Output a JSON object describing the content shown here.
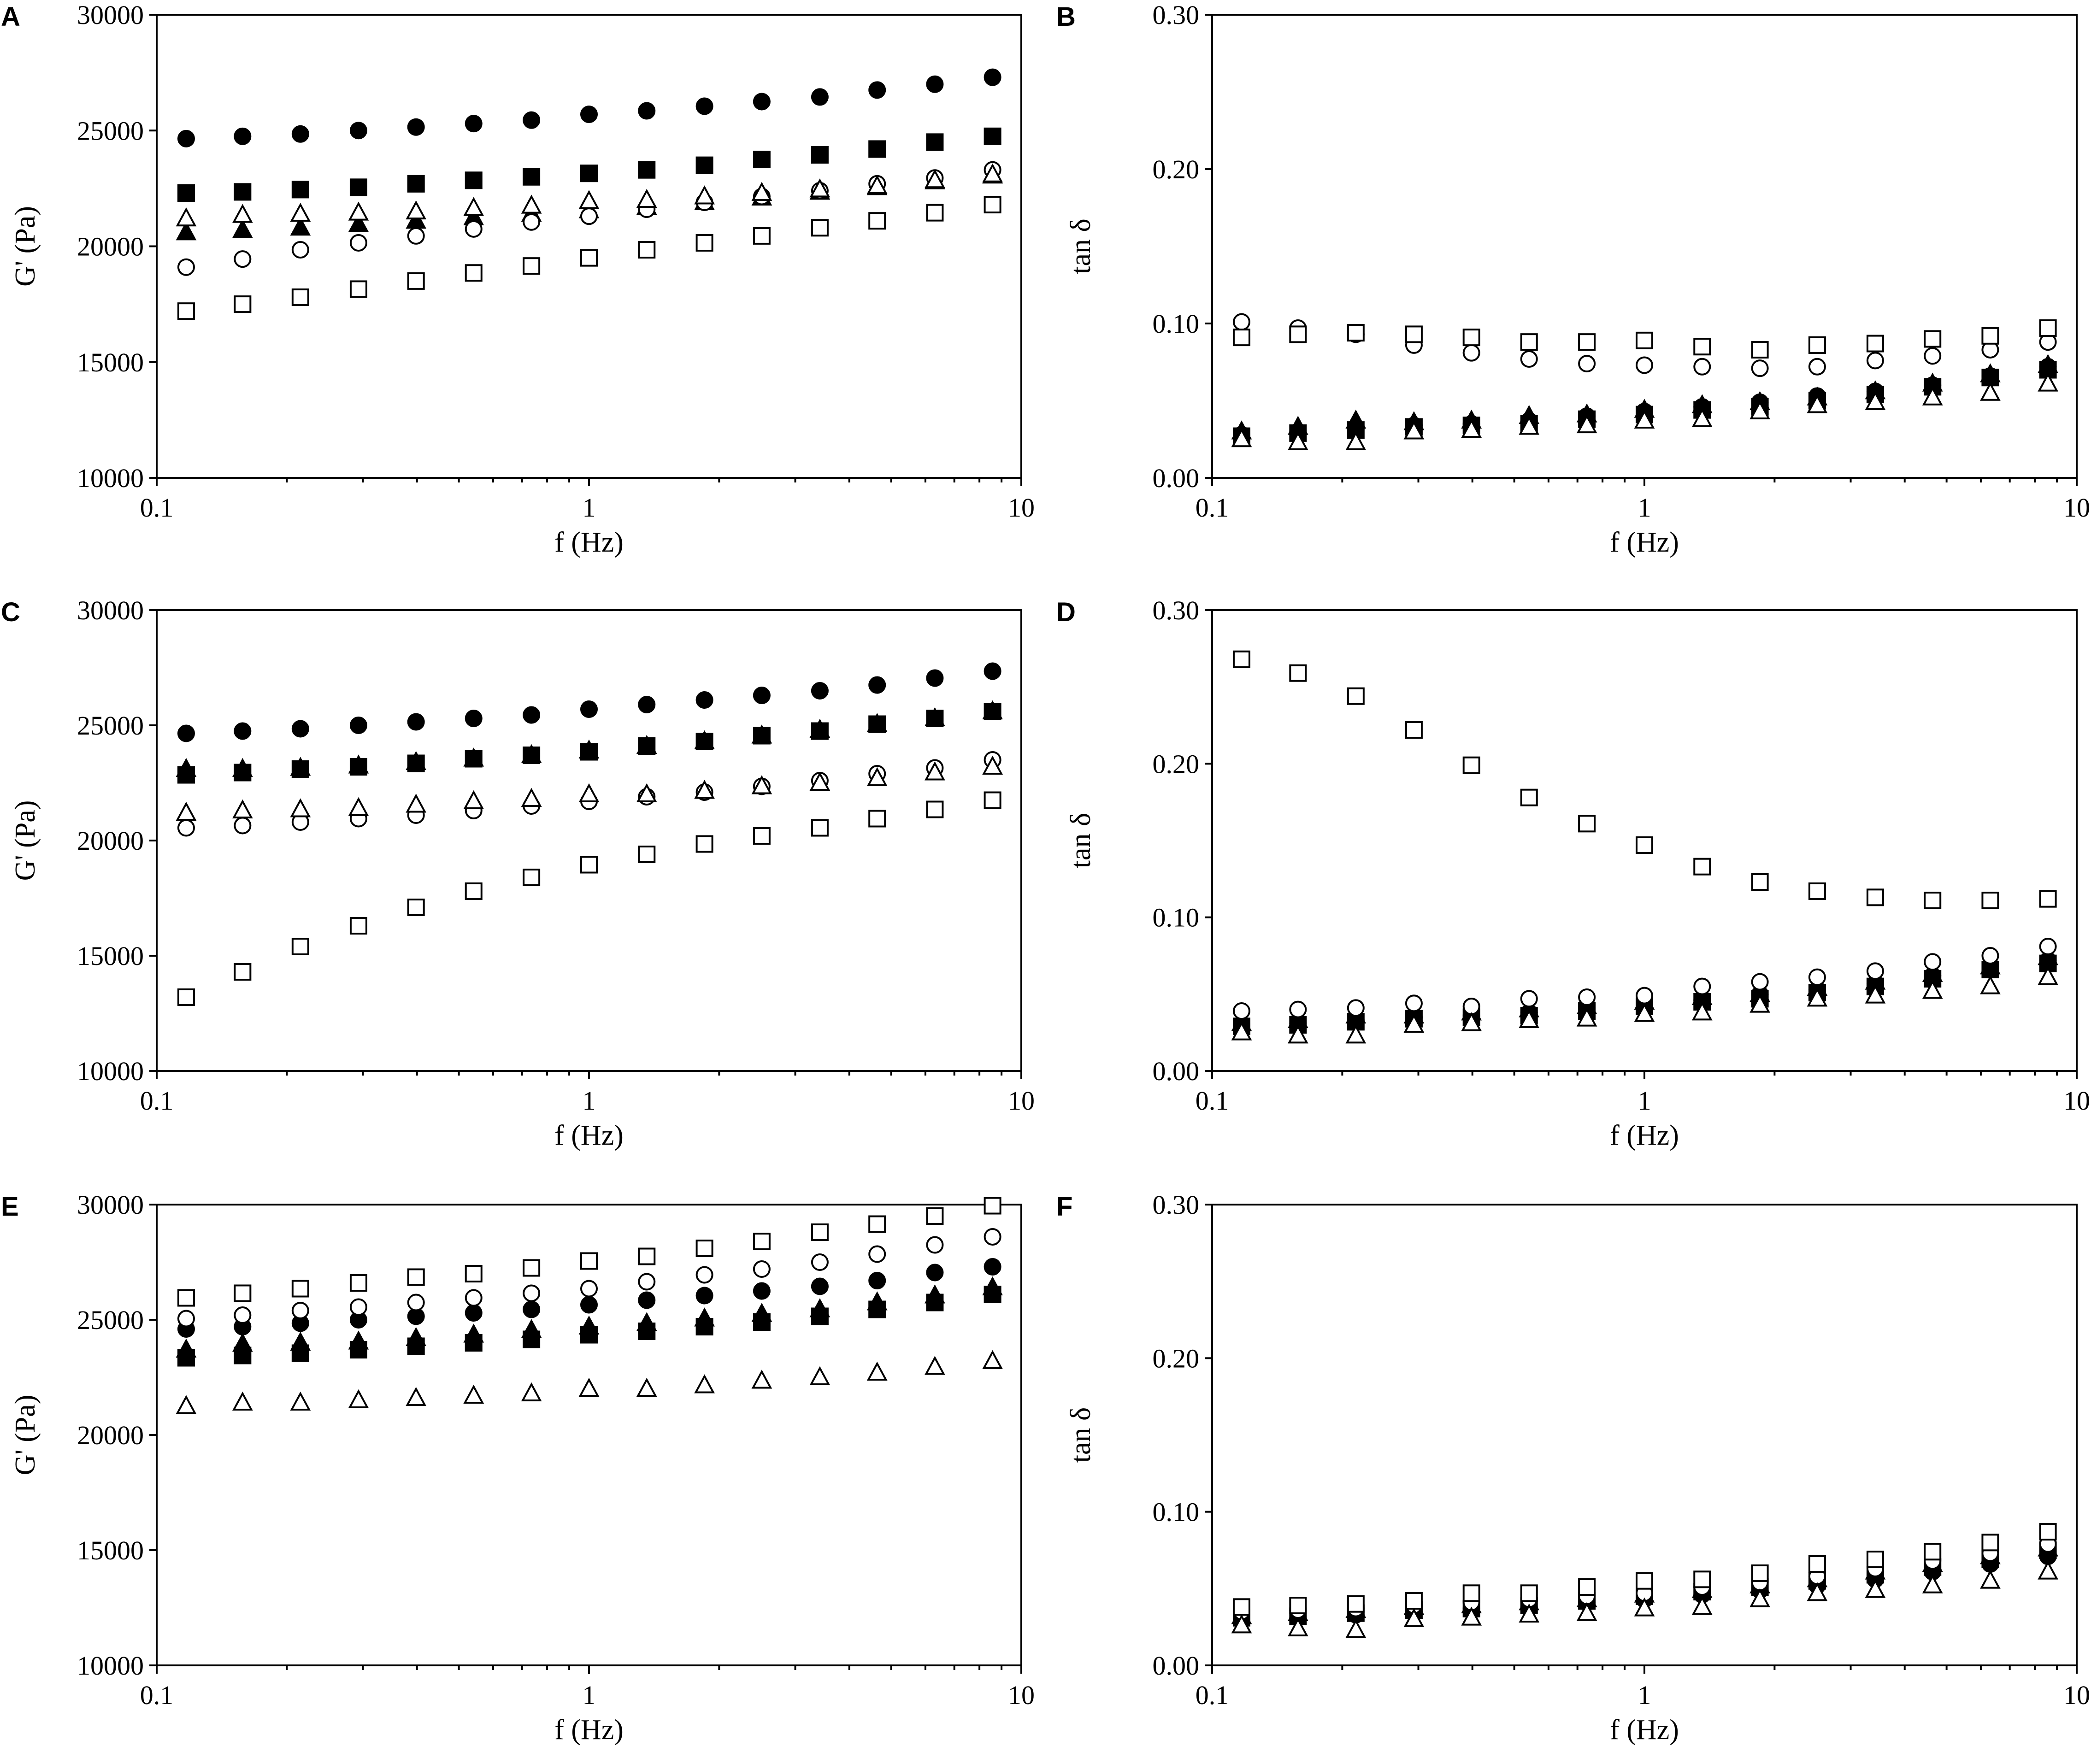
{
  "figure": {
    "series_styles": [
      {
        "key": "filled-circle",
        "marker": "circle",
        "filled": true
      },
      {
        "key": "filled-square",
        "marker": "square",
        "filled": true
      },
      {
        "key": "filled-triangle",
        "marker": "triangle",
        "filled": true
      },
      {
        "key": "open-circle",
        "marker": "circle",
        "filled": false
      },
      {
        "key": "open-triangle",
        "marker": "triangle",
        "filled": false
      },
      {
        "key": "open-square",
        "marker": "square",
        "filled": false
      }
    ],
    "colors": {
      "marker": "#000000",
      "background": "#ffffff"
    }
  },
  "chart_data": [
    {
      "panel": "A",
      "type": "scatter",
      "xscale": "log",
      "xlabel": "f (Hz)",
      "ylabel": "G' (Pa)",
      "xlim": [
        0.1,
        10
      ],
      "ylim": [
        10000,
        30000
      ],
      "xticks": [
        "0.1",
        "1",
        "10"
      ],
      "yticks": [
        "10000",
        "15000",
        "20000",
        "25000",
        "30000"
      ],
      "x": [
        0.117,
        0.158,
        0.215,
        0.293,
        0.398,
        0.541,
        0.736,
        1.0,
        1.36,
        1.85,
        2.51,
        3.42,
        4.64,
        6.31,
        8.58
      ],
      "series": [
        {
          "style": "filled-circle",
          "values": [
            24650,
            24750,
            24850,
            25000,
            25150,
            25300,
            25450,
            25700,
            25850,
            26050,
            26250,
            26450,
            26750,
            27000,
            27300
          ]
        },
        {
          "style": "filled-square",
          "values": [
            22300,
            22350,
            22450,
            22550,
            22700,
            22850,
            23000,
            23150,
            23300,
            23500,
            23750,
            23950,
            24200,
            24500,
            24750
          ]
        },
        {
          "style": "filled-triangle",
          "values": [
            20600,
            20700,
            20800,
            20950,
            21100,
            21250,
            21400,
            21550,
            21700,
            21900,
            22100,
            22350,
            22550,
            22800,
            23050
          ]
        },
        {
          "style": "open-circle",
          "values": [
            19100,
            19450,
            19850,
            20150,
            20450,
            20750,
            21050,
            21300,
            21600,
            21900,
            22150,
            22400,
            22700,
            22950,
            23300
          ]
        },
        {
          "style": "open-triangle",
          "values": [
            21200,
            21350,
            21400,
            21450,
            21500,
            21650,
            21750,
            21950,
            22000,
            22150,
            22300,
            22450,
            22600,
            22850,
            23100
          ]
        },
        {
          "style": "open-square",
          "values": [
            17200,
            17500,
            17800,
            18150,
            18500,
            18850,
            19150,
            19500,
            19850,
            20150,
            20450,
            20800,
            21100,
            21450,
            21800
          ]
        }
      ]
    },
    {
      "panel": "B",
      "type": "scatter",
      "xscale": "log",
      "xlabel": "f (Hz)",
      "ylabel": "tan δ",
      "xlim": [
        0.1,
        10
      ],
      "ylim": [
        0,
        0.3
      ],
      "xticks": [
        "0.1",
        "1",
        "10"
      ],
      "yticks": [
        "0.00",
        "0.10",
        "0.20",
        "0.30"
      ],
      "x": [
        0.117,
        0.158,
        0.215,
        0.293,
        0.398,
        0.541,
        0.736,
        1.0,
        1.36,
        1.85,
        2.51,
        3.42,
        4.64,
        6.31,
        8.58
      ],
      "series": [
        {
          "style": "filled-circle",
          "values": [
            0.028,
            0.03,
            0.032,
            0.034,
            0.035,
            0.037,
            0.04,
            0.043,
            0.046,
            0.049,
            0.053,
            0.056,
            0.06,
            0.066,
            0.072
          ]
        },
        {
          "style": "filled-square",
          "values": [
            0.027,
            0.029,
            0.031,
            0.033,
            0.034,
            0.035,
            0.038,
            0.041,
            0.044,
            0.046,
            0.05,
            0.054,
            0.059,
            0.065,
            0.07
          ]
        },
        {
          "style": "filled-triangle",
          "values": [
            0.03,
            0.033,
            0.037,
            0.036,
            0.037,
            0.04,
            0.041,
            0.044,
            0.047,
            0.049,
            0.052,
            0.056,
            0.061,
            0.067,
            0.073
          ]
        },
        {
          "style": "open-circle",
          "values": [
            0.101,
            0.097,
            0.093,
            0.086,
            0.081,
            0.077,
            0.074,
            0.073,
            0.072,
            0.071,
            0.072,
            0.076,
            0.079,
            0.083,
            0.088
          ]
        },
        {
          "style": "open-triangle",
          "values": [
            0.025,
            0.023,
            0.023,
            0.03,
            0.031,
            0.033,
            0.034,
            0.037,
            0.038,
            0.043,
            0.047,
            0.049,
            0.052,
            0.055,
            0.061
          ]
        },
        {
          "style": "open-square",
          "values": [
            0.091,
            0.093,
            0.094,
            0.093,
            0.091,
            0.088,
            0.088,
            0.089,
            0.085,
            0.083,
            0.086,
            0.087,
            0.09,
            0.092,
            0.097
          ]
        }
      ]
    },
    {
      "panel": "C",
      "type": "scatter",
      "xscale": "log",
      "xlabel": "f (Hz)",
      "ylabel": "G' (Pa)",
      "xlim": [
        0.1,
        10
      ],
      "ylim": [
        10000,
        30000
      ],
      "xticks": [
        "0.1",
        "1",
        "10"
      ],
      "yticks": [
        "10000",
        "15000",
        "20000",
        "25000",
        "30000"
      ],
      "x": [
        0.117,
        0.158,
        0.215,
        0.293,
        0.398,
        0.541,
        0.736,
        1.0,
        1.36,
        1.85,
        2.51,
        3.42,
        4.64,
        6.31,
        8.58
      ],
      "series": [
        {
          "style": "filled-circle",
          "values": [
            24650,
            24750,
            24850,
            25000,
            25150,
            25300,
            25450,
            25700,
            25900,
            26100,
            26300,
            26500,
            26750,
            27050,
            27350
          ]
        },
        {
          "style": "filled-square",
          "values": [
            22850,
            22950,
            23100,
            23200,
            23350,
            23550,
            23700,
            23850,
            24100,
            24300,
            24550,
            24750,
            25050,
            25300,
            25600
          ]
        },
        {
          "style": "filled-triangle",
          "values": [
            23100,
            23100,
            23150,
            23250,
            23400,
            23550,
            23700,
            23900,
            24100,
            24300,
            24550,
            24800,
            25050,
            25300,
            25600
          ]
        },
        {
          "style": "open-circle",
          "values": [
            20550,
            20650,
            20800,
            20950,
            21100,
            21300,
            21500,
            21700,
            21900,
            22100,
            22350,
            22600,
            22900,
            23150,
            23500
          ]
        },
        {
          "style": "open-triangle",
          "values": [
            21200,
            21300,
            21350,
            21400,
            21550,
            21700,
            21800,
            22000,
            22000,
            22150,
            22350,
            22500,
            22700,
            22950,
            23200
          ]
        },
        {
          "style": "open-square",
          "values": [
            13200,
            14300,
            15400,
            16300,
            17100,
            17800,
            18400,
            18950,
            19400,
            19850,
            20200,
            20550,
            20950,
            21350,
            21750
          ]
        }
      ]
    },
    {
      "panel": "D",
      "type": "scatter",
      "xscale": "log",
      "xlabel": "f (Hz)",
      "ylabel": "tan δ",
      "xlim": [
        0.1,
        10
      ],
      "ylim": [
        0,
        0.3
      ],
      "xticks": [
        "0.1",
        "1",
        "10"
      ],
      "yticks": [
        "0.00",
        "0.10",
        "0.20",
        "0.30"
      ],
      "x": [
        0.117,
        0.158,
        0.215,
        0.293,
        0.398,
        0.541,
        0.736,
        1.0,
        1.36,
        1.85,
        2.51,
        3.42,
        4.64,
        6.31,
        8.58
      ],
      "series": [
        {
          "style": "filled-circle",
          "values": [
            0.03,
            0.031,
            0.033,
            0.035,
            0.036,
            0.038,
            0.041,
            0.043,
            0.046,
            0.05,
            0.053,
            0.057,
            0.062,
            0.067,
            0.072
          ]
        },
        {
          "style": "filled-square",
          "values": [
            0.029,
            0.03,
            0.032,
            0.034,
            0.035,
            0.036,
            0.039,
            0.042,
            0.045,
            0.047,
            0.051,
            0.055,
            0.06,
            0.066,
            0.07
          ]
        },
        {
          "style": "filled-triangle",
          "values": [
            0.031,
            0.033,
            0.036,
            0.036,
            0.038,
            0.04,
            0.042,
            0.045,
            0.048,
            0.05,
            0.054,
            0.058,
            0.063,
            0.068,
            0.074
          ]
        },
        {
          "style": "open-circle",
          "values": [
            0.039,
            0.04,
            0.041,
            0.044,
            0.042,
            0.047,
            0.048,
            0.049,
            0.055,
            0.058,
            0.061,
            0.065,
            0.071,
            0.075,
            0.081
          ]
        },
        {
          "style": "open-triangle",
          "values": [
            0.025,
            0.023,
            0.023,
            0.03,
            0.031,
            0.033,
            0.034,
            0.037,
            0.038,
            0.043,
            0.047,
            0.049,
            0.052,
            0.055,
            0.061
          ]
        },
        {
          "style": "open-square",
          "values": [
            0.268,
            0.259,
            0.244,
            0.222,
            0.199,
            0.178,
            0.161,
            0.147,
            0.133,
            0.123,
            0.117,
            0.113,
            0.111,
            0.111,
            0.112
          ]
        }
      ]
    },
    {
      "panel": "E",
      "type": "scatter",
      "xscale": "log",
      "xlabel": "f (Hz)",
      "ylabel": "G' (Pa)",
      "xlim": [
        0.1,
        10
      ],
      "ylim": [
        10000,
        30000
      ],
      "xticks": [
        "0.1",
        "1",
        "10"
      ],
      "yticks": [
        "10000",
        "15000",
        "20000",
        "25000",
        "30000"
      ],
      "x": [
        0.117,
        0.158,
        0.215,
        0.293,
        0.398,
        0.541,
        0.736,
        1.0,
        1.36,
        1.85,
        2.51,
        3.42,
        4.64,
        6.31,
        8.58
      ],
      "series": [
        {
          "style": "filled-circle",
          "values": [
            24600,
            24700,
            24850,
            25000,
            25150,
            25300,
            25450,
            25650,
            25850,
            26050,
            26250,
            26450,
            26700,
            27050,
            27300
          ]
        },
        {
          "style": "filled-square",
          "values": [
            23350,
            23450,
            23550,
            23700,
            23850,
            24000,
            24150,
            24350,
            24500,
            24700,
            24900,
            25150,
            25450,
            25750,
            26100
          ]
        },
        {
          "style": "filled-triangle",
          "values": [
            23700,
            23950,
            24000,
            24050,
            24200,
            24350,
            24550,
            24700,
            24850,
            25050,
            25250,
            25450,
            25750,
            26050,
            26400
          ]
        },
        {
          "style": "open-circle",
          "values": [
            25050,
            25200,
            25400,
            25550,
            25750,
            25950,
            26150,
            26350,
            26650,
            26950,
            27200,
            27500,
            27850,
            28250,
            28600
          ]
        },
        {
          "style": "open-triangle",
          "values": [
            21250,
            21400,
            21400,
            21500,
            21600,
            21700,
            21800,
            22000,
            22000,
            22150,
            22350,
            22500,
            22700,
            22950,
            23200
          ]
        },
        {
          "style": "open-square",
          "values": [
            25950,
            26150,
            26350,
            26600,
            26850,
            27000,
            27250,
            27550,
            27750,
            28100,
            28400,
            28800,
            29150,
            29500,
            29950
          ]
        }
      ]
    },
    {
      "panel": "F",
      "type": "scatter",
      "xscale": "log",
      "xlabel": "f (Hz)",
      "ylabel": "tan δ",
      "xlim": [
        0.1,
        10
      ],
      "ylim": [
        0,
        0.3
      ],
      "xticks": [
        "0.1",
        "1",
        "10"
      ],
      "yticks": [
        "0.00",
        "0.10",
        "0.20",
        "0.30"
      ],
      "x": [
        0.117,
        0.158,
        0.215,
        0.293,
        0.398,
        0.541,
        0.736,
        1.0,
        1.36,
        1.85,
        2.51,
        3.42,
        4.64,
        6.31,
        8.58
      ],
      "series": [
        {
          "style": "filled-circle",
          "values": [
            0.03,
            0.031,
            0.033,
            0.035,
            0.037,
            0.038,
            0.041,
            0.043,
            0.046,
            0.049,
            0.052,
            0.056,
            0.061,
            0.066,
            0.071
          ]
        },
        {
          "style": "filled-square",
          "values": [
            0.031,
            0.032,
            0.034,
            0.036,
            0.037,
            0.039,
            0.042,
            0.045,
            0.048,
            0.051,
            0.055,
            0.059,
            0.064,
            0.069,
            0.075
          ]
        },
        {
          "style": "filled-triangle",
          "values": [
            0.032,
            0.034,
            0.036,
            0.038,
            0.039,
            0.041,
            0.043,
            0.046,
            0.049,
            0.052,
            0.056,
            0.061,
            0.066,
            0.071,
            0.076
          ]
        },
        {
          "style": "open-circle",
          "values": [
            0.035,
            0.036,
            0.037,
            0.039,
            0.041,
            0.043,
            0.045,
            0.047,
            0.051,
            0.054,
            0.058,
            0.063,
            0.068,
            0.073,
            0.079
          ]
        },
        {
          "style": "open-triangle",
          "values": [
            0.026,
            0.024,
            0.023,
            0.03,
            0.031,
            0.033,
            0.034,
            0.037,
            0.038,
            0.043,
            0.047,
            0.049,
            0.052,
            0.055,
            0.061
          ]
        },
        {
          "style": "open-square",
          "values": [
            0.038,
            0.039,
            0.04,
            0.042,
            0.047,
            0.047,
            0.051,
            0.055,
            0.056,
            0.06,
            0.066,
            0.069,
            0.074,
            0.08,
            0.087
          ]
        }
      ]
    }
  ]
}
